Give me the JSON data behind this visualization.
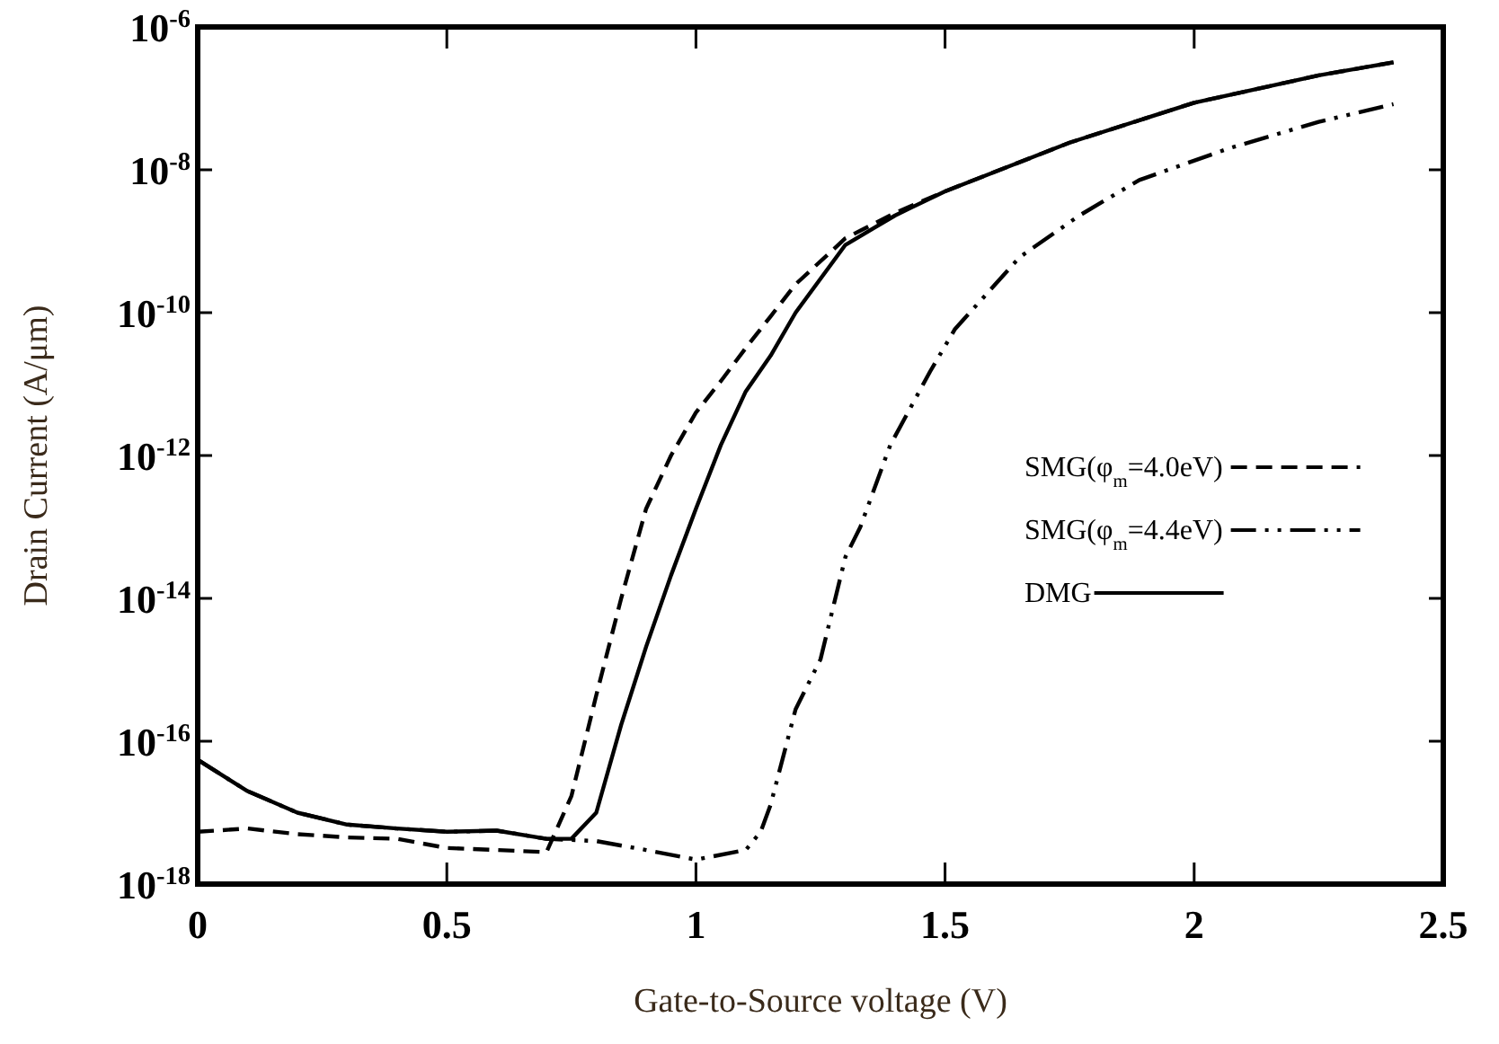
{
  "chart_data": {
    "type": "line",
    "xlabel": "Gate-to-Source voltage (V)",
    "ylabel": "Drain Current (A/μm)",
    "log": "y",
    "legend": "right",
    "grid": false,
    "xlim": [
      0,
      2.5
    ],
    "xticks": [
      0,
      0.5,
      1,
      1.5,
      2,
      2.5
    ],
    "ylim": [
      1e-18,
      1e-06
    ],
    "yticks": [
      {
        "value": 1e-18,
        "label": "10$^{-18}$"
      },
      {
        "value": 1e-16,
        "label": "10$^{-16}$"
      },
      {
        "value": 1e-14,
        "label": "10$^{-14}$"
      },
      {
        "value": 1e-12,
        "label": "10$^{-12}$"
      },
      {
        "value": 1e-10,
        "label": "10$^{-10}$"
      },
      {
        "value": 1e-08,
        "label": "10$^{-8}$"
      },
      {
        "value": 1e-06,
        "label": "10$^{-6}$"
      }
    ],
    "series": [
      {
        "name": "SMG(φ$_{m}$=4.0eV)",
        "color": "#000000",
        "line_style": "dashed",
        "x": [
          0,
          0.1,
          0.2,
          0.3,
          0.4,
          0.5,
          0.6,
          0.7,
          0.75,
          0.8,
          0.85,
          0.9,
          0.95,
          1.0,
          1.05,
          1.1,
          1.15,
          1.2,
          1.3,
          1.4,
          1.5,
          1.75,
          2.0,
          2.25,
          2.4
        ],
        "values": [
          5.4e-18,
          6e-18,
          5e-18,
          4.5e-18,
          4.3e-18,
          3.2e-18,
          3e-18,
          2.8e-18,
          1.7e-17,
          4.4e-16,
          1e-14,
          1.8e-13,
          1e-12,
          4e-12,
          1.1e-11,
          3.2e-11,
          8.9e-11,
          2.5e-10,
          1.1e-09,
          2.5e-09,
          5e-09,
          2.4e-08,
          8.7e-08,
          2.1e-07,
          3.2e-07
        ]
      },
      {
        "name": "SMG(φ$_{m}$=4.4eV)",
        "color": "#000000",
        "line_style": "dashdotdot",
        "x": [
          0,
          0.1,
          0.2,
          0.3,
          0.4,
          0.5,
          0.6,
          0.7,
          0.8,
          0.9,
          1.0,
          1.1,
          1.13,
          1.15,
          1.2,
          1.25,
          1.3,
          1.33,
          1.39,
          1.47,
          1.52,
          1.65,
          1.77,
          1.89,
          2.07,
          2.25,
          2.4
        ],
        "values": [
          5.5e-17,
          2e-17,
          1e-17,
          6.8e-18,
          6e-18,
          5.4e-18,
          5.6e-18,
          4.3e-18,
          4e-18,
          3e-18,
          2.2e-18,
          3e-18,
          5.4e-18,
          1.3e-17,
          2.8e-16,
          1.4e-15,
          3.8e-14,
          1e-13,
          1.4e-12,
          1.5e-11,
          5.9e-11,
          6e-10,
          2.3e-09,
          7.2e-09,
          2e-08,
          4.7e-08,
          8.3e-08
        ]
      },
      {
        "name": "DMG",
        "color": "#000000",
        "line_style": "solid",
        "x": [
          0,
          0.1,
          0.2,
          0.3,
          0.4,
          0.5,
          0.6,
          0.7,
          0.75,
          0.8,
          0.85,
          0.9,
          0.95,
          1.0,
          1.05,
          1.1,
          1.15,
          1.2,
          1.3,
          1.4,
          1.5,
          1.75,
          2.0,
          2.25,
          2.4
        ],
        "values": [
          5.5e-17,
          2e-17,
          1e-17,
          6.8e-18,
          6e-18,
          5.4e-18,
          5.6e-18,
          4.3e-18,
          4.3e-18,
          1e-17,
          1.7e-16,
          2.1e-15,
          2.1e-14,
          1.8e-13,
          1.4e-12,
          7.9e-12,
          2.5e-11,
          1e-10,
          8.9e-10,
          2.3e-09,
          5e-09,
          2.4e-08,
          8.7e-08,
          2.1e-07,
          3.2e-07
        ]
      }
    ]
  }
}
